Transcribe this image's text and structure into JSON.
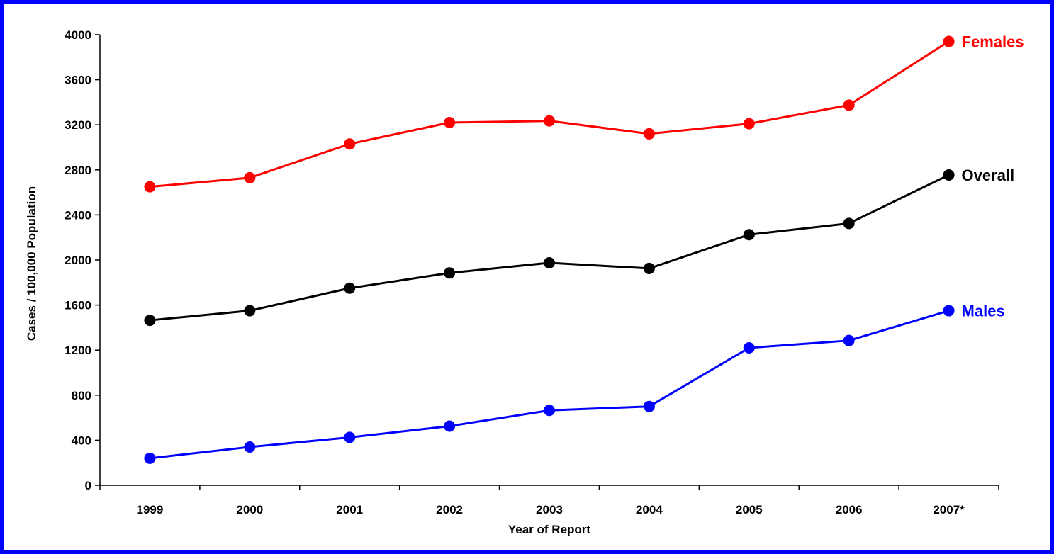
{
  "chart_data": {
    "type": "line",
    "title": "",
    "xlabel": "Year of Report",
    "ylabel": "Cases / 100,000 Population",
    "categories": [
      "1999",
      "2000",
      "2001",
      "2002",
      "2003",
      "2004",
      "2005",
      "2006",
      "2007*"
    ],
    "ylim": [
      0,
      4000
    ],
    "yticks": [
      0,
      400,
      800,
      1200,
      1600,
      2000,
      2400,
      2800,
      3200,
      3600,
      4000
    ],
    "grid": false,
    "legend": "inline labels at right end of each line",
    "series": [
      {
        "name": "Females",
        "color": "#ff0000",
        "values": [
          2650,
          2730,
          3030,
          3220,
          3235,
          3120,
          3210,
          3375,
          3940
        ]
      },
      {
        "name": "Overall",
        "color": "#000000",
        "values": [
          1465,
          1550,
          1750,
          1885,
          1975,
          1925,
          2225,
          2325,
          2755
        ]
      },
      {
        "name": "Males",
        "color": "#0000ff",
        "values": [
          240,
          340,
          425,
          525,
          665,
          700,
          1220,
          1285,
          1550
        ]
      }
    ]
  },
  "frame": {
    "border_color": "#0000ff"
  }
}
